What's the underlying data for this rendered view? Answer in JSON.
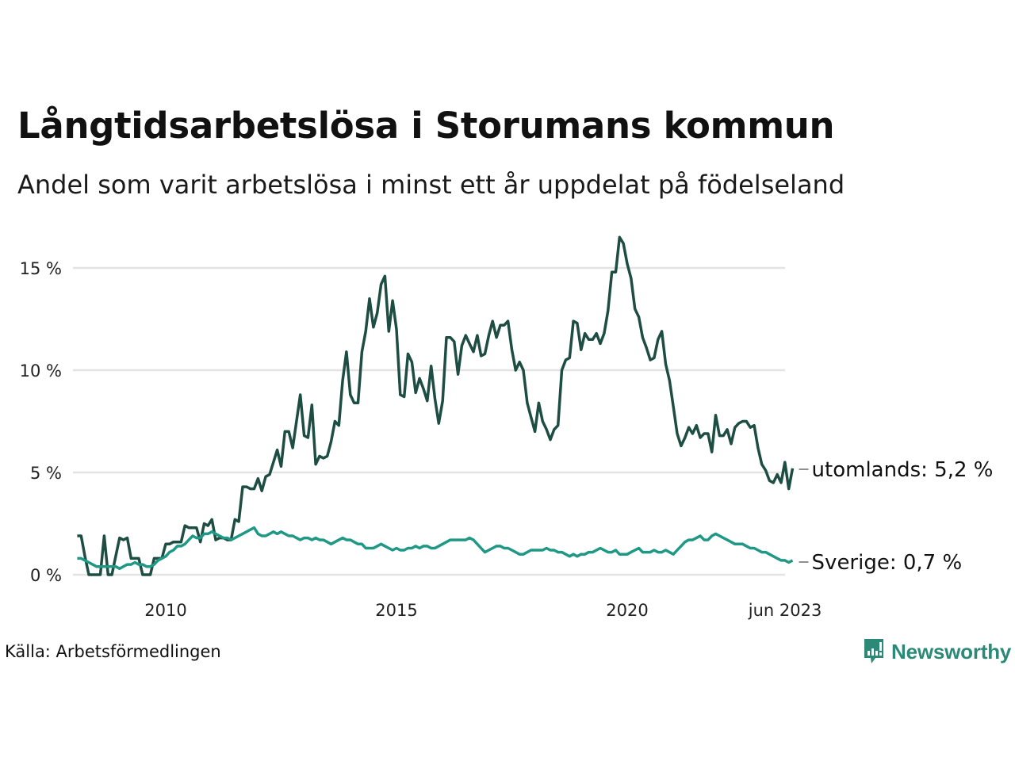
{
  "header": {
    "title": "Långtidsarbetslösa i Storumans kommun",
    "subtitle": "Andel som varit arbetslösa i minst ett år uppdelat på födelseland"
  },
  "footer": {
    "source": "Källa: Arbetsförmedlingen",
    "brand": "Newsworthy",
    "brand_icon": "chart-speech-bubble-icon"
  },
  "colors": {
    "utomlands": "#1e4d43",
    "sverige": "#1f9985",
    "grid": "#e3e3e3",
    "brand": "#2a8a77"
  },
  "chart_data": {
    "type": "line",
    "title": "Långtidsarbetslösa i Storumans kommun",
    "subtitle": "Andel som varit arbetslösa i minst ett år uppdelat på födelseland",
    "xlabel": "",
    "ylabel": "",
    "x_start": "2008-02",
    "x_end": "2023-06",
    "frequency": "monthly",
    "xlim": [
      2008.08,
      2023.42
    ],
    "ylim": [
      0,
      16.5
    ],
    "grid": true,
    "legend": "end-labels-right",
    "x_ticks": [
      {
        "value": 2010,
        "label": "2010"
      },
      {
        "value": 2015,
        "label": "2015"
      },
      {
        "value": 2020,
        "label": "2020"
      },
      {
        "value": 2023.42,
        "label": "jun 2023"
      }
    ],
    "y_ticks": [
      {
        "value": 0,
        "label": "0 %"
      },
      {
        "value": 5,
        "label": "5 %"
      },
      {
        "value": 10,
        "label": "10 %"
      },
      {
        "value": 15,
        "label": "15 %"
      }
    ],
    "series": [
      {
        "name": "utomlands",
        "end_label": "utomlands: 5,2 %",
        "values": [
          1.9,
          1.9,
          0.9,
          0.0,
          0.0,
          0.0,
          0.0,
          1.9,
          0.0,
          0.0,
          0.9,
          1.8,
          1.7,
          1.8,
          0.8,
          0.8,
          0.8,
          0.0,
          0.0,
          0.0,
          0.8,
          0.8,
          0.8,
          1.5,
          1.5,
          1.6,
          1.6,
          1.6,
          2.4,
          2.3,
          2.3,
          2.3,
          1.6,
          2.5,
          2.4,
          2.7,
          1.7,
          1.8,
          1.8,
          1.7,
          1.7,
          2.7,
          2.6,
          4.3,
          4.3,
          4.2,
          4.2,
          4.7,
          4.1,
          4.8,
          4.9,
          5.5,
          6.1,
          5.3,
          7.0,
          7.0,
          6.2,
          7.5,
          8.8,
          6.8,
          6.7,
          8.3,
          5.4,
          5.8,
          5.7,
          5.8,
          6.5,
          7.5,
          7.3,
          9.5,
          10.9,
          8.8,
          8.4,
          8.4,
          10.9,
          11.9,
          13.5,
          12.1,
          12.8,
          14.2,
          14.6,
          11.9,
          13.4,
          12.0,
          8.8,
          8.7,
          10.8,
          10.4,
          8.9,
          9.6,
          9.1,
          8.5,
          10.2,
          8.6,
          7.4,
          8.5,
          11.6,
          11.6,
          11.4,
          9.8,
          11.2,
          11.7,
          11.3,
          10.9,
          11.7,
          10.7,
          10.8,
          11.7,
          12.4,
          11.6,
          12.2,
          12.2,
          12.4,
          11.0,
          10.0,
          10.4,
          10.0,
          8.4,
          7.7,
          7.0,
          8.4,
          7.5,
          7.1,
          6.6,
          7.1,
          7.3,
          10.0,
          10.5,
          10.6,
          12.4,
          12.3,
          11.0,
          11.8,
          11.5,
          11.5,
          11.8,
          11.3,
          11.8,
          12.9,
          14.8,
          14.8,
          16.5,
          16.2,
          15.2,
          14.5,
          13.0,
          12.6,
          11.6,
          11.1,
          10.5,
          10.6,
          11.5,
          11.9,
          10.3,
          9.5,
          8.2,
          6.9,
          6.3,
          6.7,
          7.2,
          6.9,
          7.3,
          6.7,
          6.9,
          6.9,
          6.0,
          7.8,
          6.8,
          6.8,
          7.1,
          6.4,
          7.2,
          7.4,
          7.5,
          7.5,
          7.2,
          7.3,
          6.2,
          5.4,
          5.1,
          4.6,
          4.5,
          4.9,
          4.5,
          5.5,
          4.2,
          5.2
        ]
      },
      {
        "name": "Sverige",
        "end_label": "Sverige: 0,7 %",
        "values": [
          0.8,
          0.8,
          0.7,
          0.6,
          0.5,
          0.4,
          0.4,
          0.4,
          0.4,
          0.4,
          0.4,
          0.3,
          0.4,
          0.5,
          0.5,
          0.6,
          0.5,
          0.5,
          0.4,
          0.4,
          0.5,
          0.7,
          0.8,
          0.9,
          1.1,
          1.2,
          1.4,
          1.4,
          1.5,
          1.7,
          1.9,
          1.8,
          1.8,
          2.0,
          2.0,
          2.1,
          2.0,
          1.9,
          1.8,
          1.8,
          1.7,
          1.8,
          1.9,
          2.0,
          2.1,
          2.2,
          2.3,
          2.0,
          1.9,
          1.9,
          2.0,
          2.1,
          2.0,
          2.1,
          2.0,
          1.9,
          1.9,
          1.8,
          1.7,
          1.8,
          1.8,
          1.7,
          1.8,
          1.7,
          1.7,
          1.6,
          1.5,
          1.6,
          1.7,
          1.8,
          1.7,
          1.7,
          1.6,
          1.5,
          1.5,
          1.3,
          1.3,
          1.3,
          1.4,
          1.5,
          1.4,
          1.3,
          1.2,
          1.3,
          1.2,
          1.2,
          1.3,
          1.3,
          1.4,
          1.3,
          1.4,
          1.4,
          1.3,
          1.3,
          1.4,
          1.5,
          1.6,
          1.7,
          1.7,
          1.7,
          1.7,
          1.7,
          1.8,
          1.7,
          1.5,
          1.3,
          1.1,
          1.2,
          1.3,
          1.4,
          1.4,
          1.3,
          1.3,
          1.2,
          1.1,
          1.0,
          1.0,
          1.1,
          1.2,
          1.2,
          1.2,
          1.2,
          1.3,
          1.2,
          1.2,
          1.1,
          1.1,
          1.0,
          0.9,
          1.0,
          0.9,
          1.0,
          1.0,
          1.1,
          1.1,
          1.2,
          1.3,
          1.2,
          1.1,
          1.1,
          1.2,
          1.0,
          1.0,
          1.0,
          1.1,
          1.2,
          1.3,
          1.1,
          1.1,
          1.1,
          1.2,
          1.1,
          1.1,
          1.2,
          1.1,
          1.0,
          1.2,
          1.4,
          1.6,
          1.7,
          1.7,
          1.8,
          1.9,
          1.7,
          1.7,
          1.9,
          2.0,
          1.9,
          1.8,
          1.7,
          1.6,
          1.5,
          1.5,
          1.5,
          1.4,
          1.3,
          1.3,
          1.2,
          1.1,
          1.1,
          1.0,
          0.9,
          0.8,
          0.7,
          0.7,
          0.6,
          0.7
        ]
      }
    ]
  }
}
